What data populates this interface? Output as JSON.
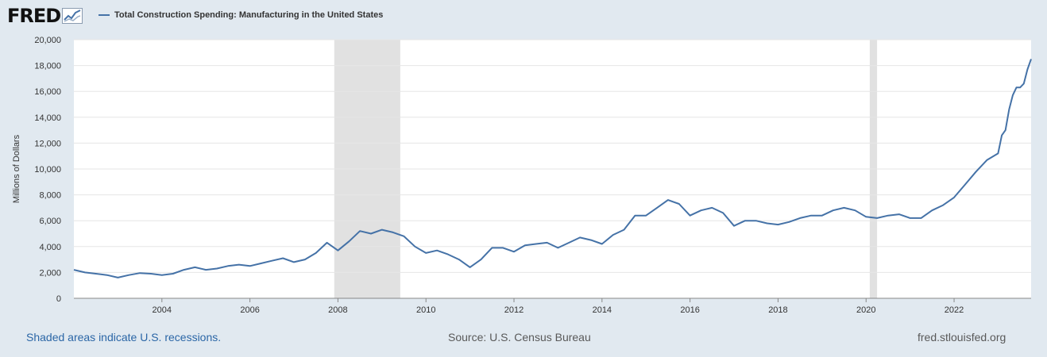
{
  "header": {
    "logo_text": "FRED",
    "logo_icon": "line-chart-icon"
  },
  "footer": {
    "recession_note": "Shaded areas indicate U.S. recessions.",
    "source": "Source: U.S. Census Bureau",
    "site": "fred.stlouisfed.org"
  },
  "colors": {
    "series": "#4572a7",
    "recession": "#e1e1e1",
    "background": "#e1e9f0",
    "plot": "#ffffff"
  },
  "chart_data": {
    "type": "line",
    "title": "",
    "xlabel": "",
    "ylabel": "Millions of Dollars",
    "ylim": [
      0,
      20000
    ],
    "xlim": [
      "2002-01",
      "2023-10"
    ],
    "yticks": [
      0,
      2000,
      4000,
      6000,
      8000,
      10000,
      12000,
      14000,
      16000,
      18000,
      20000
    ],
    "ytick_labels": [
      "0",
      "2,000",
      "4,000",
      "6,000",
      "8,000",
      "10,000",
      "12,000",
      "14,000",
      "16,000",
      "18,000",
      "20,000"
    ],
    "xtick_labels": [
      "2004",
      "2006",
      "2008",
      "2010",
      "2012",
      "2014",
      "2016",
      "2018",
      "2020",
      "2022"
    ],
    "grid": "horizontal",
    "legend": "top-left",
    "recessions": [
      {
        "start": "2007-12",
        "end": "2009-06"
      },
      {
        "start": "2020-02",
        "end": "2020-04"
      }
    ],
    "series": [
      {
        "name": "Total Construction Spending: Manufacturing in the United States",
        "x": [
          "2002-01",
          "2002-04",
          "2002-07",
          "2002-10",
          "2003-01",
          "2003-04",
          "2003-07",
          "2003-10",
          "2004-01",
          "2004-04",
          "2004-07",
          "2004-10",
          "2005-01",
          "2005-04",
          "2005-07",
          "2005-10",
          "2006-01",
          "2006-04",
          "2006-07",
          "2006-10",
          "2007-01",
          "2007-04",
          "2007-07",
          "2007-10",
          "2008-01",
          "2008-04",
          "2008-07",
          "2008-10",
          "2009-01",
          "2009-04",
          "2009-07",
          "2009-10",
          "2010-01",
          "2010-04",
          "2010-07",
          "2010-10",
          "2011-01",
          "2011-04",
          "2011-07",
          "2011-10",
          "2012-01",
          "2012-04",
          "2012-07",
          "2012-10",
          "2013-01",
          "2013-04",
          "2013-07",
          "2013-10",
          "2014-01",
          "2014-04",
          "2014-07",
          "2014-10",
          "2015-01",
          "2015-04",
          "2015-07",
          "2015-10",
          "2016-01",
          "2016-04",
          "2016-07",
          "2016-10",
          "2017-01",
          "2017-04",
          "2017-07",
          "2017-10",
          "2018-01",
          "2018-04",
          "2018-07",
          "2018-10",
          "2019-01",
          "2019-04",
          "2019-07",
          "2019-10",
          "2020-01",
          "2020-04",
          "2020-07",
          "2020-10",
          "2021-01",
          "2021-04",
          "2021-07",
          "2021-10",
          "2022-01",
          "2022-04",
          "2022-07",
          "2022-10",
          "2023-01",
          "2023-02",
          "2023-03",
          "2023-04",
          "2023-05",
          "2023-06",
          "2023-07",
          "2023-08",
          "2023-09",
          "2023-10"
        ],
        "values": [
          2200,
          2000,
          1900,
          1800,
          1600,
          1800,
          1950,
          1900,
          1800,
          1900,
          2200,
          2400,
          2200,
          2300,
          2500,
          2600,
          2500,
          2700,
          2900,
          3100,
          2800,
          3000,
          3500,
          4300,
          3700,
          4400,
          5200,
          5000,
          5300,
          5100,
          4800,
          4000,
          3500,
          3700,
          3400,
          3000,
          2400,
          3000,
          3900,
          3900,
          3600,
          4100,
          4200,
          4300,
          3900,
          4300,
          4700,
          4500,
          4200,
          4900,
          5300,
          6400,
          6400,
          7000,
          7600,
          7300,
          6400,
          6800,
          7000,
          6600,
          5600,
          6000,
          6000,
          5800,
          5700,
          5900,
          6200,
          6400,
          6400,
          6800,
          7000,
          6800,
          6300,
          6200,
          6400,
          6500,
          6200,
          6200,
          6800,
          7200,
          7800,
          8800,
          9800,
          10700,
          11200,
          12600,
          13000,
          14600,
          15700,
          16300,
          16300,
          16600,
          17700,
          18500
        ]
      }
    ]
  }
}
